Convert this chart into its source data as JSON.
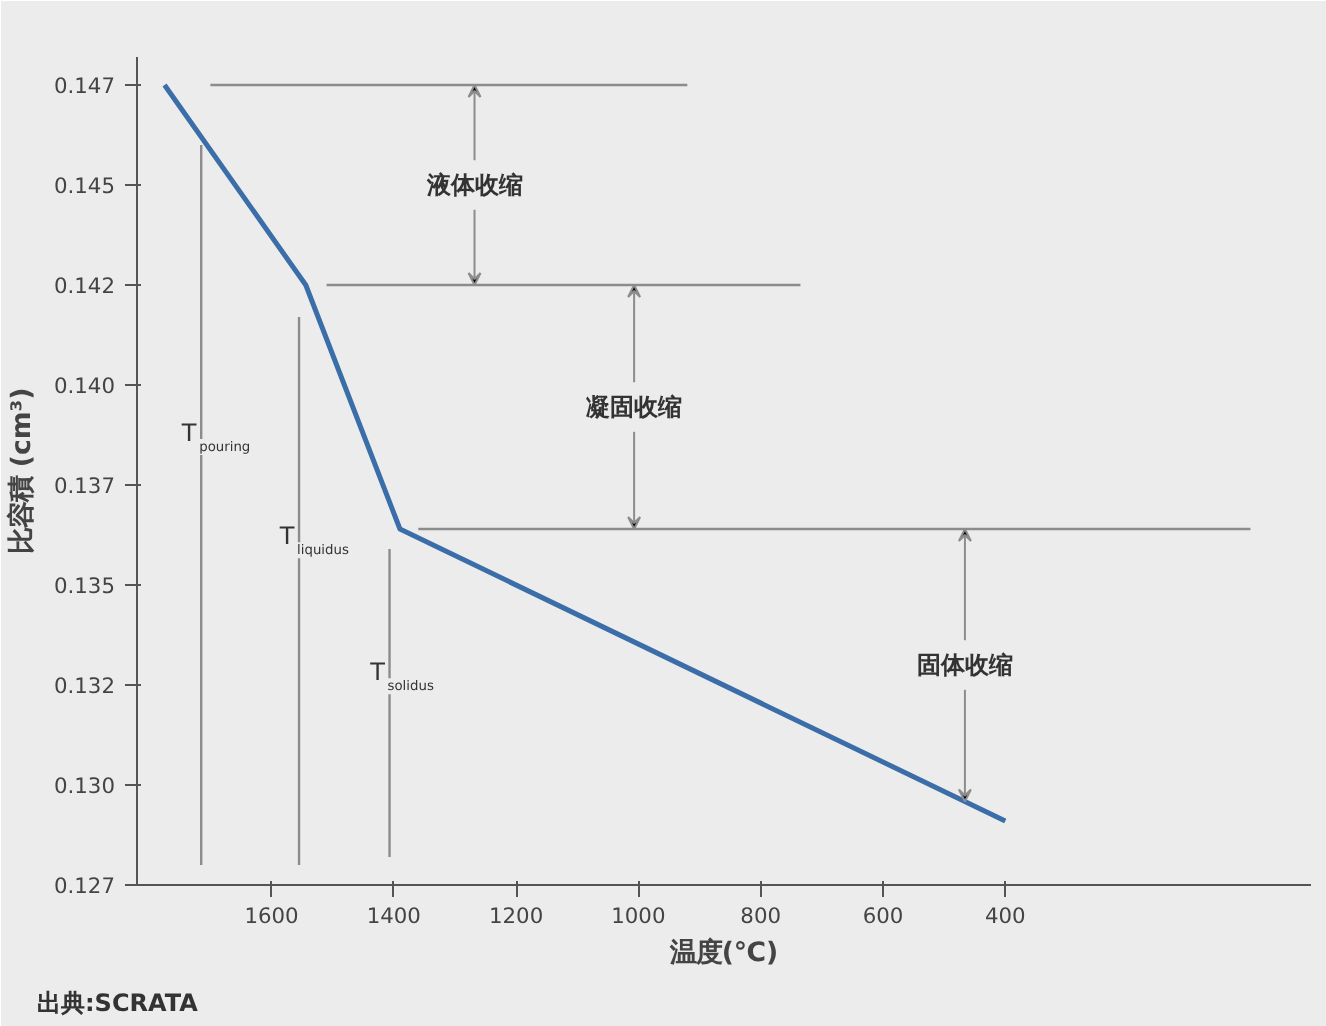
{
  "chart_data": {
    "type": "line",
    "xlabel": "温度(℃)",
    "ylabel": "比容積 (cm³)",
    "xlim": [
      1820,
      -100
    ],
    "ylim": [
      0.127,
      0.1477
    ],
    "xticks": [
      1600,
      1400,
      1200,
      1000,
      800,
      600,
      400
    ],
    "yticks": [
      {
        "value": 0.127,
        "label": "0.127"
      },
      {
        "value": 0.1295,
        "label": "0.130"
      },
      {
        "value": 0.132,
        "label": "0.132"
      },
      {
        "value": 0.1345,
        "label": "0.135"
      },
      {
        "value": 0.137,
        "label": "0.137"
      },
      {
        "value": 0.1395,
        "label": "0.140"
      },
      {
        "value": 0.142,
        "label": "0.142"
      },
      {
        "value": 0.1445,
        "label": "0.145"
      },
      {
        "value": 0.147,
        "label": "0.147"
      }
    ],
    "grid": false,
    "series": [
      {
        "color": "#3b6ea8",
        "x": [
          1775,
          1544,
          1390,
          400
        ],
        "values": [
          0.147,
          0.142,
          0.1359,
          0.1286
        ]
      },
      {
        "color": "#8c8c8c",
        "x": [
          1700,
          920
        ],
        "values": [
          0.147,
          0.147
        ]
      },
      {
        "color": "#8c8c8c",
        "x": [
          1510,
          735
        ],
        "values": [
          0.142,
          0.142
        ]
      },
      {
        "color": "#8c8c8c",
        "x": [
          1360,
          -1
        ],
        "values": [
          0.1359,
          0.1359
        ]
      },
      {
        "name": "T$_{pouring}$",
        "color": "#8c8c8c",
        "x": [
          1715,
          1715
        ],
        "values": [
          0.1455,
          0.1275
        ]
      },
      {
        "name": "T$_{liquidus}$",
        "color": "#8c8c8c",
        "x": [
          1555,
          1555
        ],
        "values": [
          0.1412,
          0.1275
        ]
      },
      {
        "name": "T$_{solidus}$",
        "color": "#8c8c8c",
        "x": [
          1407,
          1407
        ],
        "values": [
          0.1354,
          0.1277
        ]
      }
    ],
    "annotations": [
      {
        "text": "液体收缩",
        "x": 1268,
        "y": 0.142
      },
      {
        "text": "凝固收缩",
        "x": 1007,
        "y": 0.1359
      },
      {
        "text": "固体收缩",
        "x": 466,
        "y": 0.1291
      },
      "出典:SCRATA"
    ]
  }
}
